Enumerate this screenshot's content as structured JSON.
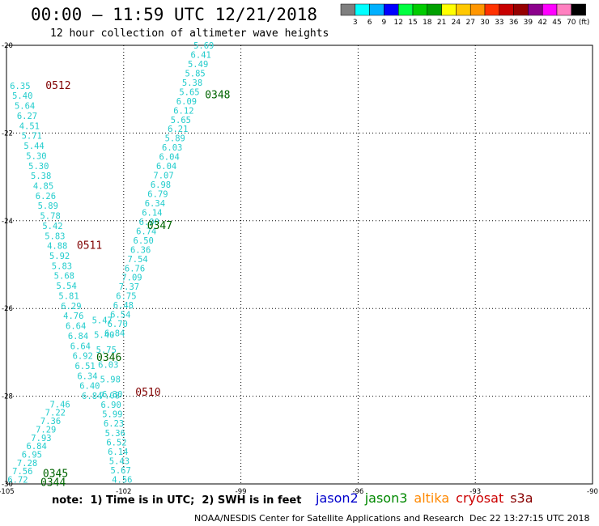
{
  "title": "00:00 – 11:59 UTC 12/21/2018",
  "subtitle": "12 hour collection of altimeter wave heights",
  "colorbar": {
    "unit": "(ft)",
    "colors": [
      "#7f7f7f",
      "#00ffff",
      "#00b0ff",
      "#0000ff",
      "#00ff40",
      "#00cc00",
      "#00a000",
      "#ffff00",
      "#ffc800",
      "#ff9600",
      "#ff3200",
      "#c80000",
      "#960000",
      "#8b008b",
      "#ff00ff",
      "#ff80c0",
      "#000000"
    ],
    "labels": [
      "3",
      "6",
      "9",
      "12",
      "15",
      "18",
      "21",
      "24",
      "27",
      "30",
      "33",
      "36",
      "39",
      "42",
      "45",
      "70"
    ]
  },
  "axes": {
    "x_ticks": [
      "-105",
      "-102",
      "-99",
      "-96",
      "-93",
      "-90"
    ],
    "y_ticks": [
      "-20",
      "-22",
      "-24",
      "-26",
      "-28",
      "-30"
    ]
  },
  "chart_data": {
    "type": "scatter",
    "xlim": [
      -105,
      -90
    ],
    "ylim": [
      -30,
      -20
    ],
    "grid": true,
    "pass_labels": [
      {
        "text": "0512",
        "color": "#800000",
        "lon": -104.0,
        "lat": -20.9
      },
      {
        "text": "0348",
        "color": "#006400",
        "lon": -99.92,
        "lat": -21.12
      },
      {
        "text": "0347",
        "color": "#006400",
        "lon": -101.4,
        "lat": -24.1
      },
      {
        "text": "0511",
        "color": "#800000",
        "lon": -103.2,
        "lat": -24.55
      },
      {
        "text": "0346",
        "color": "#006400",
        "lon": -102.7,
        "lat": -27.1
      },
      {
        "text": "0510",
        "color": "#800000",
        "lon": -101.7,
        "lat": -27.9
      },
      {
        "text": "0345",
        "color": "#006400",
        "lon": -104.07,
        "lat": -29.75
      },
      {
        "text": "0344",
        "color": "#006400",
        "lon": -104.13,
        "lat": -29.95
      }
    ],
    "tracks": [
      {
        "pass": "0512-0511",
        "start": {
          "lon": -104.65,
          "lat": -20.92
        },
        "end": {
          "lon": -102.81,
          "lat": -27.99
        },
        "values": [
          "6.35",
          "5.40",
          "5.64",
          "6.27",
          "4.51",
          "5.71",
          "5.44",
          "5.30",
          "5.30",
          "5.38",
          "4.85",
          "6.26",
          "5.89",
          "5.78",
          "5.42",
          "5.83",
          "4.88",
          "5.92",
          "5.83",
          "5.68",
          "5.54",
          "5.81",
          "6.29",
          "4.76",
          "6.64",
          "6.84",
          "6.64",
          "6.92",
          "6.51",
          "6.34",
          "6.40",
          "6.84"
        ]
      },
      {
        "pass": "0348-0347",
        "start": {
          "lon": -99.95,
          "lat": -20.0
        },
        "end": {
          "lon": -102.23,
          "lat": -26.56
        },
        "values": [
          "5.69",
          "6.41",
          "5.49",
          "5.85",
          "5.38",
          "5.65",
          "6.09",
          "6.12",
          "5.65",
          "6.21",
          "5.89",
          "6.03",
          "6.04",
          "6.04",
          "7.07",
          "6.98",
          "6.79",
          "6.34",
          "6.14",
          "6.00",
          "6.74",
          "6.50",
          "6.36",
          "7.54",
          "6.76",
          "7.09",
          "7.37",
          "6.75",
          "6.48",
          "6.54",
          "6.70",
          "6.84"
        ]
      },
      {
        "pass": "0346-0510",
        "start": {
          "lon": -102.55,
          "lat": -26.26
        },
        "end": {
          "lon": -102.29,
          "lat": -27.95
        },
        "values": [
          "5.47",
          "5.40",
          "5.75",
          "6.03",
          "5.98",
          "6.30"
        ]
      },
      {
        "pass": "0510",
        "start": {
          "lon": -102.36,
          "lat": -27.98
        },
        "end": {
          "lon": -102.04,
          "lat": -29.9
        },
        "values": [
          "7.08",
          "6.90",
          "5.99",
          "6.23",
          "5.36",
          "6.52",
          "6.14",
          "5.43",
          "5.67",
          "4.56"
        ]
      },
      {
        "pass": "0345-0344",
        "start": {
          "lon": -103.63,
          "lat": -28.18
        },
        "end": {
          "lon": -104.71,
          "lat": -29.9
        },
        "values": [
          "7.46",
          "7.22",
          "7.36",
          "7.29",
          "7.93",
          "6.84",
          "6.95",
          "7.28",
          "7.56",
          "6.72"
        ]
      }
    ]
  },
  "note": "note:  1) Time is in UTC;  2) SWH is in feet",
  "satellites": [
    {
      "name": "jason2",
      "color": "#0000cc"
    },
    {
      "name": "jason3",
      "color": "#008800"
    },
    {
      "name": "altika",
      "color": "#ff8800"
    },
    {
      "name": "cryosat",
      "color": "#cc0000"
    },
    {
      "name": "s3a",
      "color": "#880000"
    }
  ],
  "footer": {
    "credit": "NOAA/NESDIS Center for Satellite Applications and Research",
    "timestamp": "Dec 22 13:27:15 UTC 2018"
  }
}
